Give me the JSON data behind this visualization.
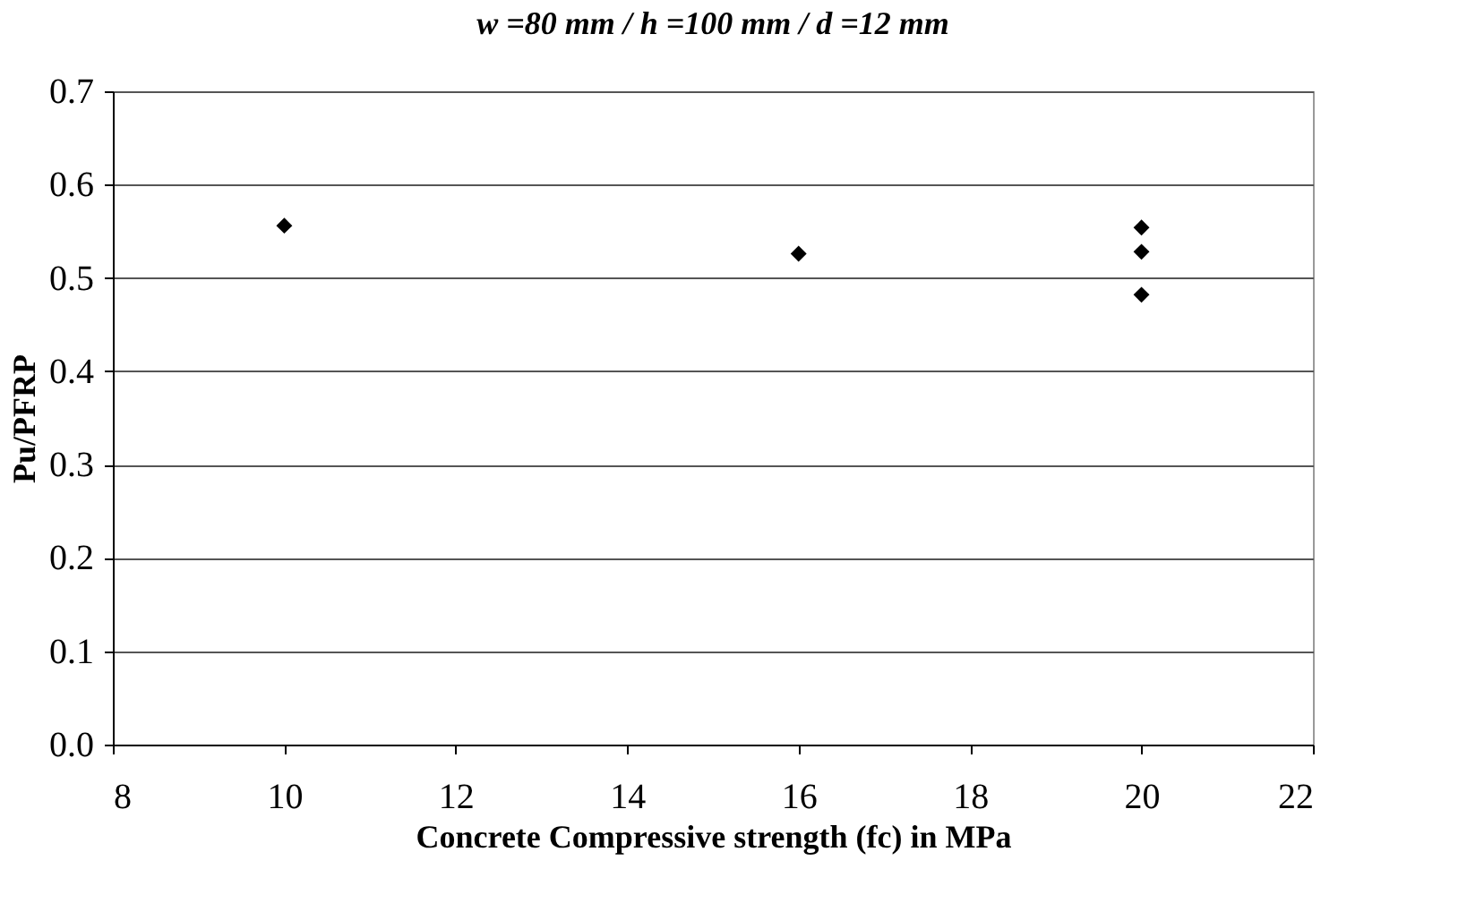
{
  "chart_data": {
    "type": "scatter",
    "title": "w =80 mm / h =100 mm / d =12 mm",
    "xlabel": "Concrete Compressive strength (fc) in MPa",
    "ylabel": "Pu/PFRP",
    "x": [
      10,
      16,
      20,
      20,
      20
    ],
    "series": [
      {
        "color": "#000000",
        "values": [
          0.556,
          0.526,
          0.554,
          0.528,
          0.482
        ]
      }
    ],
    "xlim": [
      8,
      22
    ],
    "xticks": [
      8,
      10,
      12,
      14,
      16,
      18,
      20,
      22
    ],
    "ylim": [
      0,
      0.7
    ],
    "yticks": [
      {
        "value": 0,
        "label": "0.0"
      },
      0.1,
      0.2,
      0.3,
      0.4,
      0.5,
      0.6,
      0.7
    ],
    "grid": "y",
    "marker": "diamond"
  }
}
